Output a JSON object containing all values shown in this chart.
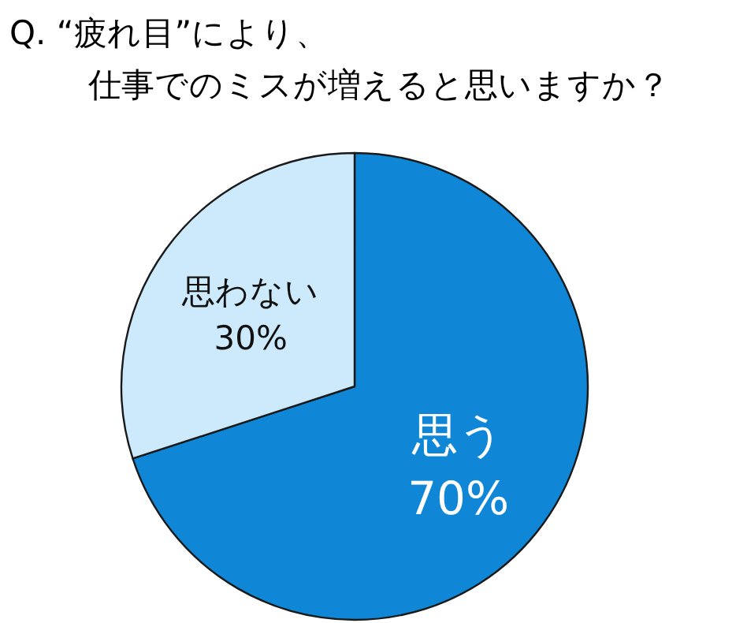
{
  "chart_data": {
    "type": "pie",
    "title": "Q. “疲れ目”により、仕事でのミスが増えると思いますか？",
    "categories": [
      "思う",
      "思わない"
    ],
    "values": [
      70,
      30
    ],
    "value_labels": [
      "70%",
      "30%"
    ],
    "colors": [
      "#0f86d6",
      "#cdeafc"
    ]
  }
}
